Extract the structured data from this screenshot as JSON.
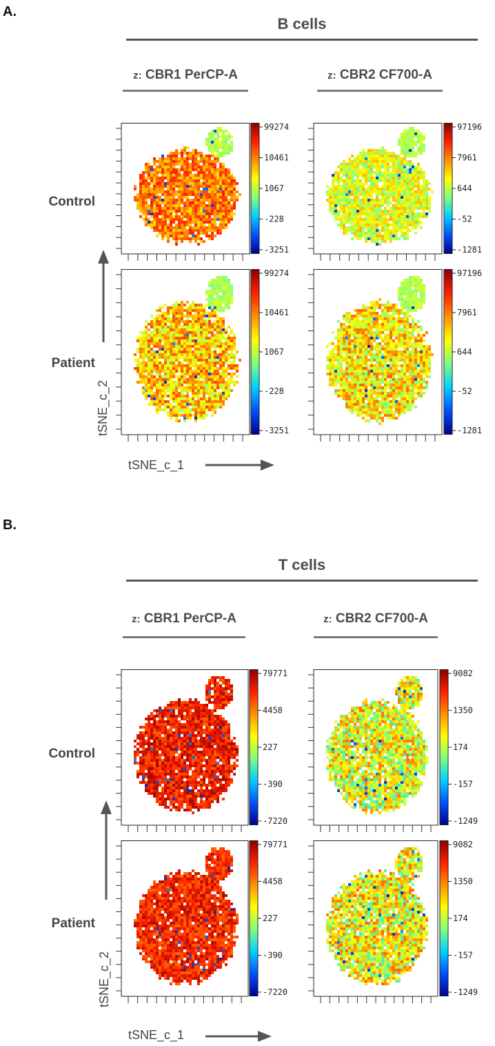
{
  "sections": [
    {
      "letter": "A.",
      "title": "B cells",
      "columns": [
        {
          "prefix": "z:",
          "title": "CBR1 PerCP-A",
          "colorbar_ticks": [
            "99274",
            "10461",
            "1067",
            "-228",
            "-3251"
          ]
        },
        {
          "prefix": "z:",
          "title": "CBR2 CF700-A",
          "colorbar_ticks": [
            "97196",
            "7961",
            "644",
            "-52",
            "-1281"
          ]
        }
      ],
      "rows": [
        "Control",
        "Patient"
      ],
      "xlabel": "tSNE_c_1",
      "ylabel": "tSNE_c_2"
    },
    {
      "letter": "B.",
      "title": "T cells",
      "columns": [
        {
          "prefix": "z:",
          "title": "CBR1 PerCP-A",
          "colorbar_ticks": [
            "79771",
            "4458",
            "227",
            "-390",
            "-7220"
          ]
        },
        {
          "prefix": "z:",
          "title": "CBR2 CF700-A",
          "colorbar_ticks": [
            "9082",
            "1350",
            "174",
            "-157",
            "-1249"
          ]
        }
      ],
      "rows": [
        "Control",
        "Patient"
      ],
      "xlabel": "tSNE_c_1",
      "ylabel": "tSNE_c_2"
    }
  ],
  "colors": {
    "scale": [
      "#00008b",
      "#0050ff",
      "#00d0ff",
      "#80ff80",
      "#ffff00",
      "#ff9000",
      "#ff2000",
      "#8b0000"
    ],
    "axis_arrow": "#555555"
  }
}
